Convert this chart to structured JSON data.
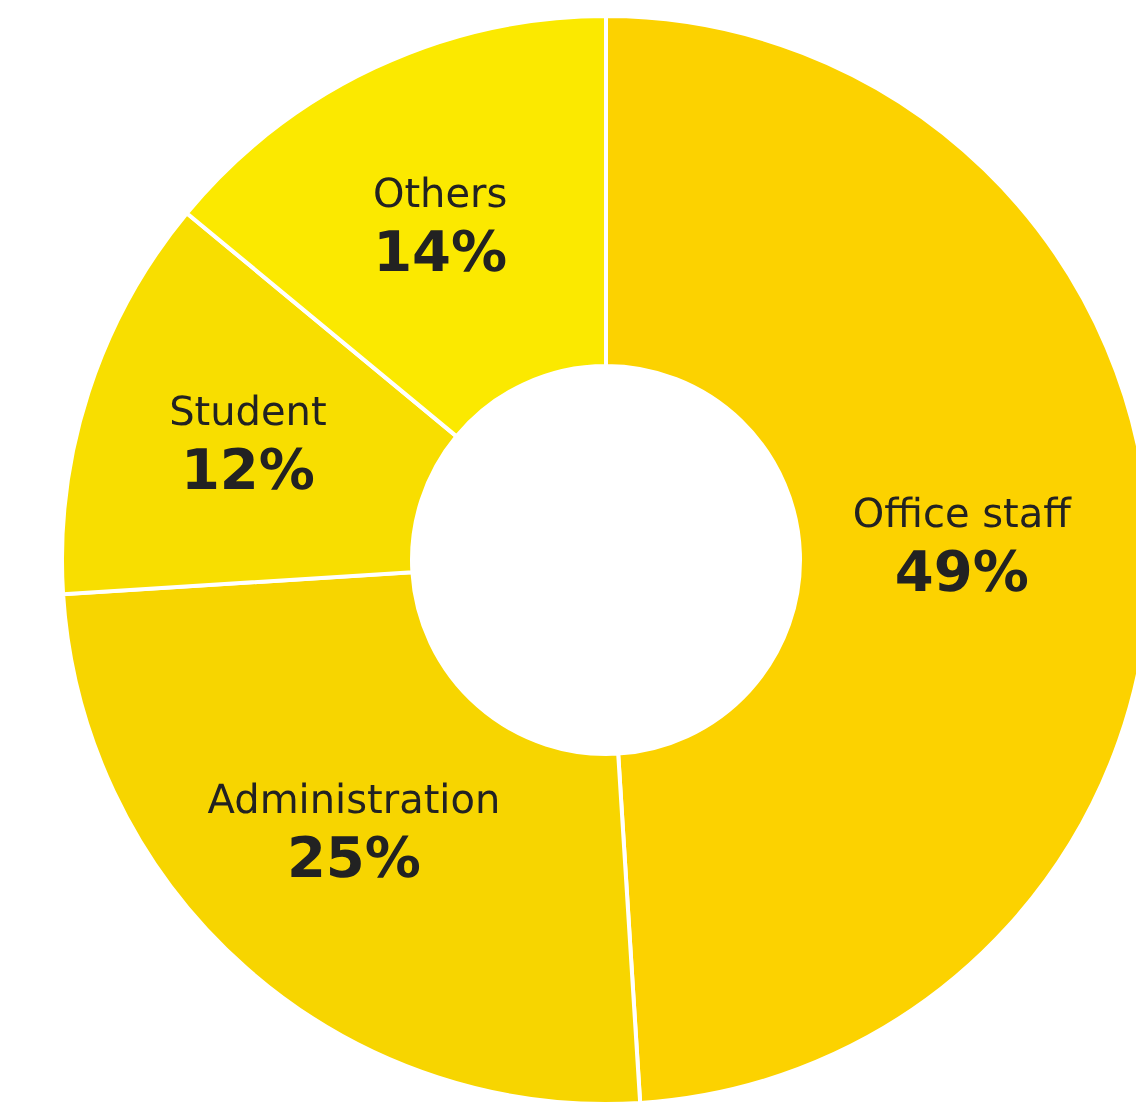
{
  "chart_data": {
    "type": "donut",
    "categories": [
      "Office staff",
      "Administration",
      "Student",
      "Others"
    ],
    "values": [
      49,
      25,
      12,
      14
    ],
    "value_labels": [
      "49%",
      "25%",
      "12%",
      "14%"
    ],
    "colors": [
      "#fcd200",
      "#f7d500",
      "#f8de00",
      "#fbe900"
    ]
  }
}
